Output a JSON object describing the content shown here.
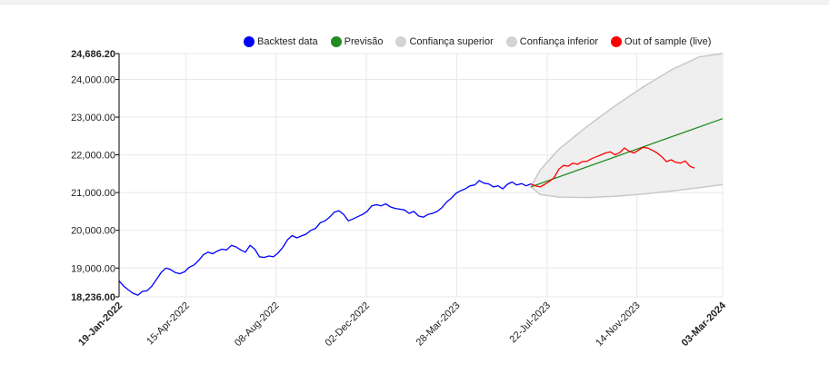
{
  "chart_data": {
    "type": "line",
    "legend_position": "top",
    "grid": true,
    "ylim": [
      18236.0,
      24686.2
    ],
    "xlim": [
      "2022-01-19",
      "2024-03-03"
    ],
    "y_ticks": [
      {
        "value": 18236.0,
        "label": "18,236.00",
        "bold": true
      },
      {
        "value": 19000,
        "label": "19,000.00",
        "bold": false
      },
      {
        "value": 20000,
        "label": "20,000.00",
        "bold": false
      },
      {
        "value": 21000,
        "label": "21,000.00",
        "bold": false
      },
      {
        "value": 22000,
        "label": "22,000.00",
        "bold": false
      },
      {
        "value": 23000,
        "label": "23,000.00",
        "bold": false
      },
      {
        "value": 24000,
        "label": "24,000.00",
        "bold": false
      },
      {
        "value": 24686.2,
        "label": "24,686.20",
        "bold": true
      }
    ],
    "x_ticks": [
      {
        "date": "2022-01-19",
        "label": "19-Jan-2022",
        "bold": true
      },
      {
        "date": "2022-04-15",
        "label": "15-Apr-2022",
        "bold": false
      },
      {
        "date": "2022-08-08",
        "label": "08-Aug-2022",
        "bold": false
      },
      {
        "date": "2022-12-02",
        "label": "02-Dec-2022",
        "bold": false
      },
      {
        "date": "2023-03-28",
        "label": "28-Mar-2023",
        "bold": false
      },
      {
        "date": "2023-07-22",
        "label": "22-Jul-2023",
        "bold": false
      },
      {
        "date": "2023-11-14",
        "label": "14-Nov-2023",
        "bold": false
      },
      {
        "date": "2024-03-03",
        "label": "03-Mar-2024",
        "bold": true
      }
    ],
    "legend": [
      {
        "label": "Backtest data",
        "color": "#0000ff"
      },
      {
        "label": "Previsão",
        "color": "#228b22"
      },
      {
        "label": "Confiança superior",
        "color": "#d3d3d3"
      },
      {
        "label": "Confiança inferior",
        "color": "#d3d3d3"
      },
      {
        "label": "Out of sample (live)",
        "color": "#ff0000"
      }
    ],
    "series": [
      {
        "name": "Backtest data",
        "color": "#0000ff",
        "points": [
          [
            "2022-01-19",
            18660
          ],
          [
            "2022-01-25",
            18520
          ],
          [
            "2022-01-31",
            18420
          ],
          [
            "2022-02-06",
            18330
          ],
          [
            "2022-02-12",
            18280
          ],
          [
            "2022-02-18",
            18380
          ],
          [
            "2022-02-24",
            18400
          ],
          [
            "2022-03-02",
            18520
          ],
          [
            "2022-03-08",
            18700
          ],
          [
            "2022-03-14",
            18880
          ],
          [
            "2022-03-20",
            19000
          ],
          [
            "2022-03-26",
            18960
          ],
          [
            "2022-04-01",
            18880
          ],
          [
            "2022-04-07",
            18850
          ],
          [
            "2022-04-13",
            18900
          ],
          [
            "2022-04-19",
            19020
          ],
          [
            "2022-04-25",
            19080
          ],
          [
            "2022-05-01",
            19200
          ],
          [
            "2022-05-07",
            19350
          ],
          [
            "2022-05-13",
            19420
          ],
          [
            "2022-05-19",
            19380
          ],
          [
            "2022-05-25",
            19450
          ],
          [
            "2022-05-31",
            19500
          ],
          [
            "2022-06-06",
            19480
          ],
          [
            "2022-06-12",
            19600
          ],
          [
            "2022-06-18",
            19560
          ],
          [
            "2022-06-24",
            19480
          ],
          [
            "2022-06-30",
            19420
          ],
          [
            "2022-07-06",
            19600
          ],
          [
            "2022-07-12",
            19500
          ],
          [
            "2022-07-18",
            19300
          ],
          [
            "2022-07-24",
            19280
          ],
          [
            "2022-07-30",
            19320
          ],
          [
            "2022-08-05",
            19300
          ],
          [
            "2022-08-11",
            19400
          ],
          [
            "2022-08-17",
            19550
          ],
          [
            "2022-08-23",
            19750
          ],
          [
            "2022-08-29",
            19860
          ],
          [
            "2022-09-04",
            19800
          ],
          [
            "2022-09-10",
            19850
          ],
          [
            "2022-09-16",
            19900
          ],
          [
            "2022-09-22",
            20000
          ],
          [
            "2022-09-28",
            20050
          ],
          [
            "2022-10-04",
            20200
          ],
          [
            "2022-10-10",
            20250
          ],
          [
            "2022-10-16",
            20350
          ],
          [
            "2022-10-22",
            20480
          ],
          [
            "2022-10-28",
            20520
          ],
          [
            "2022-11-03",
            20420
          ],
          [
            "2022-11-09",
            20250
          ],
          [
            "2022-11-15",
            20300
          ],
          [
            "2022-11-21",
            20360
          ],
          [
            "2022-11-27",
            20420
          ],
          [
            "2022-12-03",
            20500
          ],
          [
            "2022-12-09",
            20650
          ],
          [
            "2022-12-15",
            20680
          ],
          [
            "2022-12-21",
            20650
          ],
          [
            "2022-12-27",
            20700
          ],
          [
            "2023-01-02",
            20620
          ],
          [
            "2023-01-08",
            20580
          ],
          [
            "2023-01-14",
            20560
          ],
          [
            "2023-01-20",
            20540
          ],
          [
            "2023-01-26",
            20450
          ],
          [
            "2023-02-01",
            20500
          ],
          [
            "2023-02-07",
            20380
          ],
          [
            "2023-02-13",
            20350
          ],
          [
            "2023-02-19",
            20420
          ],
          [
            "2023-02-25",
            20450
          ],
          [
            "2023-03-03",
            20500
          ],
          [
            "2023-03-09",
            20600
          ],
          [
            "2023-03-15",
            20750
          ],
          [
            "2023-03-21",
            20850
          ],
          [
            "2023-03-27",
            20980
          ],
          [
            "2023-04-02",
            21050
          ],
          [
            "2023-04-08",
            21100
          ],
          [
            "2023-04-14",
            21180
          ],
          [
            "2023-04-20",
            21200
          ],
          [
            "2023-04-26",
            21320
          ],
          [
            "2023-05-02",
            21250
          ],
          [
            "2023-05-08",
            21230
          ],
          [
            "2023-05-14",
            21150
          ],
          [
            "2023-05-20",
            21180
          ],
          [
            "2023-05-26",
            21100
          ],
          [
            "2023-06-01",
            21220
          ],
          [
            "2023-06-07",
            21280
          ],
          [
            "2023-06-13",
            21200
          ],
          [
            "2023-06-19",
            21240
          ],
          [
            "2023-06-25",
            21180
          ],
          [
            "2023-07-01",
            21230
          ]
        ]
      },
      {
        "name": "Out of sample (live)",
        "color": "#ff0000",
        "points": [
          [
            "2023-07-01",
            21230
          ],
          [
            "2023-07-07",
            21180
          ],
          [
            "2023-07-13",
            21150
          ],
          [
            "2023-07-19",
            21220
          ],
          [
            "2023-07-25",
            21300
          ],
          [
            "2023-07-31",
            21400
          ],
          [
            "2023-08-06",
            21620
          ],
          [
            "2023-08-12",
            21720
          ],
          [
            "2023-08-18",
            21700
          ],
          [
            "2023-08-24",
            21780
          ],
          [
            "2023-08-30",
            21750
          ],
          [
            "2023-09-05",
            21820
          ],
          [
            "2023-09-11",
            21830
          ],
          [
            "2023-09-17",
            21900
          ],
          [
            "2023-09-23",
            21950
          ],
          [
            "2023-09-29",
            22000
          ],
          [
            "2023-10-05",
            22050
          ],
          [
            "2023-10-11",
            22080
          ],
          [
            "2023-10-17",
            22000
          ],
          [
            "2023-10-23",
            22060
          ],
          [
            "2023-10-29",
            22180
          ],
          [
            "2023-11-04",
            22100
          ],
          [
            "2023-11-10",
            22050
          ],
          [
            "2023-11-16",
            22120
          ],
          [
            "2023-11-22",
            22200
          ],
          [
            "2023-11-28",
            22180
          ],
          [
            "2023-12-04",
            22120
          ],
          [
            "2023-12-10",
            22050
          ],
          [
            "2023-12-16",
            21950
          ],
          [
            "2023-12-22",
            21820
          ],
          [
            "2023-12-28",
            21870
          ],
          [
            "2024-01-03",
            21800
          ],
          [
            "2024-01-09",
            21780
          ],
          [
            "2024-01-15",
            21840
          ],
          [
            "2024-01-21",
            21700
          ],
          [
            "2024-01-27",
            21650
          ]
        ]
      },
      {
        "name": "Previsão",
        "color": "#228b22",
        "points": [
          [
            "2023-07-01",
            21150
          ],
          [
            "2024-03-03",
            22960
          ]
        ]
      },
      {
        "name": "Confiança superior",
        "color": "#d3d3d3",
        "points": [
          [
            "2023-07-01",
            21150
          ],
          [
            "2023-07-13",
            21600
          ],
          [
            "2023-08-06",
            22150
          ],
          [
            "2023-09-11",
            22750
          ],
          [
            "2023-10-17",
            23300
          ],
          [
            "2023-11-22",
            23800
          ],
          [
            "2023-12-28",
            24250
          ],
          [
            "2024-02-02",
            24600
          ],
          [
            "2024-03-03",
            24686.2
          ]
        ]
      },
      {
        "name": "Confiança inferior",
        "color": "#d3d3d3",
        "points": [
          [
            "2023-07-01",
            21150
          ],
          [
            "2023-07-13",
            20950
          ],
          [
            "2023-08-06",
            20880
          ],
          [
            "2023-09-11",
            20870
          ],
          [
            "2023-10-17",
            20900
          ],
          [
            "2023-11-22",
            20960
          ],
          [
            "2023-12-28",
            21040
          ],
          [
            "2024-02-02",
            21130
          ],
          [
            "2024-03-03",
            21210
          ]
        ]
      }
    ]
  }
}
